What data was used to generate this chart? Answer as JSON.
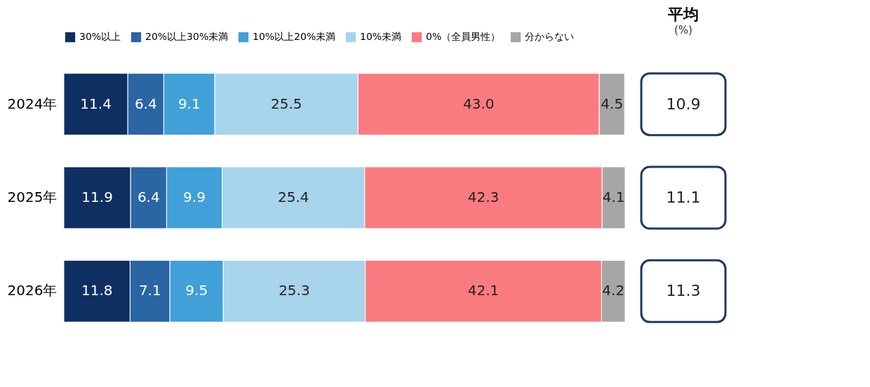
{
  "chart_data": [
    {
      "type": "bar",
      "orientation": "horizontal",
      "stacked": true,
      "categories": [
        "2024年",
        "2025年",
        "2026年"
      ],
      "series": [
        {
          "name": "30%以上",
          "color": "#0f2f63",
          "values": [
            11.4,
            11.9,
            11.8
          ],
          "value_labels": [
            "11.4",
            "11.9",
            "11.8"
          ]
        },
        {
          "name": "20%以上30%未満",
          "color": "#2a65a4",
          "values": [
            6.4,
            6.4,
            7.1
          ],
          "value_labels": [
            "6.4",
            "6.4",
            "7.1"
          ]
        },
        {
          "name": "10%以上20%未満",
          "color": "#41a0d8",
          "values": [
            9.1,
            9.9,
            9.5
          ],
          "value_labels": [
            "9.1",
            "9.9",
            "9.5"
          ]
        },
        {
          "name": "10%未満",
          "color": "#a8d4ec",
          "values": [
            25.5,
            25.4,
            25.3
          ],
          "value_labels": [
            "25.5",
            "25.4",
            "25.3"
          ]
        },
        {
          "name": "0%（全員男性）",
          "color": "#f97b80",
          "values": [
            43.0,
            42.3,
            42.1
          ],
          "value_labels": [
            "43.0",
            "42.3",
            "42.1"
          ]
        },
        {
          "name": "分からない",
          "color": "#a6a6a6",
          "values": [
            4.5,
            4.1,
            4.2
          ],
          "value_labels": [
            "4.5",
            "4.1",
            "4.2"
          ]
        }
      ],
      "legend": "top"
    },
    {
      "type": "other",
      "title": "平均",
      "annotations": [
        "(%)"
      ],
      "values": [
        10.9,
        11.1,
        11.3
      ],
      "data_labels": true
    }
  ]
}
